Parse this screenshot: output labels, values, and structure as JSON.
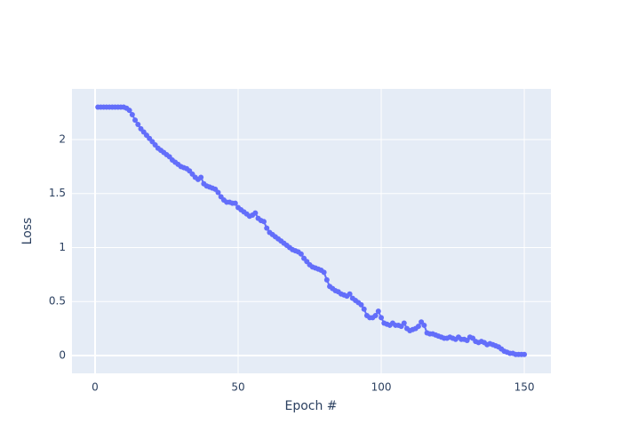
{
  "chart_data": {
    "type": "scatter",
    "mode": "lines+markers",
    "x_label": "Epoch #",
    "y_label": "Loss",
    "x": [
      1,
      2,
      3,
      4,
      5,
      6,
      7,
      8,
      9,
      10,
      11,
      12,
      13,
      14,
      15,
      16,
      17,
      18,
      19,
      20,
      21,
      22,
      23,
      24,
      25,
      26,
      27,
      28,
      29,
      30,
      31,
      32,
      33,
      34,
      35,
      36,
      37,
      38,
      39,
      40,
      41,
      42,
      43,
      44,
      45,
      46,
      47,
      48,
      49,
      50,
      51,
      52,
      53,
      54,
      55,
      56,
      57,
      58,
      59,
      60,
      61,
      62,
      63,
      64,
      65,
      66,
      67,
      68,
      69,
      70,
      71,
      72,
      73,
      74,
      75,
      76,
      77,
      78,
      79,
      80,
      81,
      82,
      83,
      84,
      85,
      86,
      87,
      88,
      89,
      90,
      91,
      92,
      93,
      94,
      95,
      96,
      97,
      98,
      99,
      100,
      101,
      102,
      103,
      104,
      105,
      106,
      107,
      108,
      109,
      110,
      111,
      112,
      113,
      114,
      115,
      116,
      117,
      118,
      119,
      120,
      121,
      122,
      123,
      124,
      125,
      126,
      127,
      128,
      129,
      130,
      131,
      132,
      133,
      134,
      135,
      136,
      137,
      138,
      139,
      140,
      141,
      142,
      143,
      144,
      145,
      146,
      147,
      148,
      149,
      150
    ],
    "series": [
      {
        "color": "#636efa",
        "values": [
          2.3,
          2.3,
          2.3,
          2.3,
          2.3,
          2.3,
          2.3,
          2.3,
          2.3,
          2.3,
          2.29,
          2.27,
          2.23,
          2.18,
          2.14,
          2.1,
          2.07,
          2.04,
          2.01,
          1.98,
          1.95,
          1.92,
          1.9,
          1.88,
          1.86,
          1.84,
          1.81,
          1.79,
          1.77,
          1.75,
          1.74,
          1.73,
          1.71,
          1.68,
          1.65,
          1.63,
          1.65,
          1.59,
          1.57,
          1.56,
          1.55,
          1.54,
          1.51,
          1.47,
          1.44,
          1.42,
          1.42,
          1.41,
          1.41,
          1.37,
          1.35,
          1.33,
          1.31,
          1.29,
          1.3,
          1.32,
          1.27,
          1.25,
          1.24,
          1.18,
          1.14,
          1.12,
          1.1,
          1.08,
          1.06,
          1.04,
          1.02,
          1.0,
          0.98,
          0.97,
          0.96,
          0.94,
          0.9,
          0.87,
          0.84,
          0.82,
          0.81,
          0.8,
          0.79,
          0.77,
          0.7,
          0.64,
          0.62,
          0.6,
          0.59,
          0.57,
          0.56,
          0.55,
          0.57,
          0.53,
          0.51,
          0.49,
          0.47,
          0.43,
          0.37,
          0.35,
          0.35,
          0.37,
          0.41,
          0.35,
          0.3,
          0.29,
          0.28,
          0.3,
          0.28,
          0.28,
          0.27,
          0.3,
          0.25,
          0.23,
          0.24,
          0.25,
          0.27,
          0.31,
          0.28,
          0.21,
          0.2,
          0.2,
          0.19,
          0.18,
          0.17,
          0.16,
          0.16,
          0.17,
          0.16,
          0.15,
          0.17,
          0.15,
          0.15,
          0.14,
          0.17,
          0.16,
          0.13,
          0.12,
          0.13,
          0.12,
          0.1,
          0.11,
          0.1,
          0.09,
          0.08,
          0.06,
          0.04,
          0.03,
          0.02,
          0.02,
          0.01,
          0.01,
          0.01,
          0.01
        ]
      }
    ],
    "xlim": [
      -8.07,
      159.3
    ],
    "ylim": [
      -0.165,
      2.469
    ],
    "xticks": [
      0,
      50,
      100,
      150
    ],
    "yticks": [
      0,
      0.5,
      1,
      1.5,
      2
    ],
    "grid": true
  }
}
